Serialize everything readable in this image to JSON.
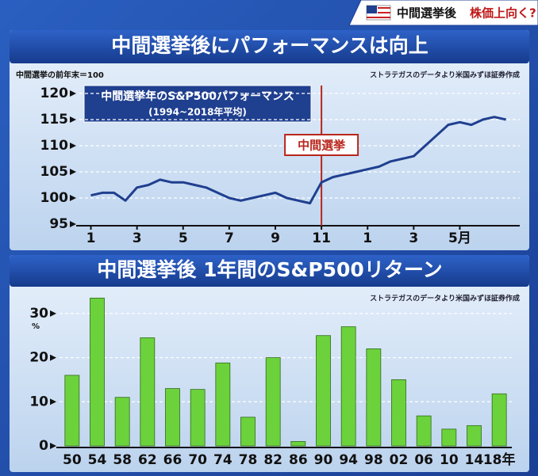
{
  "header": {
    "title": "中間選挙後",
    "subtitle": "株価上向く?"
  },
  "chart_data": [
    {
      "type": "line",
      "title": "中間選挙後にパフォーマンスは向上",
      "y_label": "中間選挙の前年末＝100",
      "source": "ストラテガスのデータより米国みずほ証券作成",
      "legend_box": {
        "title": "中間選挙年のS&P500パフォーマンス",
        "subtitle": "(1994~2018年平均)"
      },
      "annotation": {
        "label": "中間選挙",
        "x": 11
      },
      "x": [
        1,
        1.5,
        2,
        2.5,
        3,
        3.5,
        4,
        4.5,
        5,
        5.5,
        6,
        6.5,
        7,
        7.5,
        8,
        8.5,
        9,
        9.5,
        10,
        10.5,
        11,
        11.5,
        12,
        12.5,
        13,
        13.5,
        14,
        14.5,
        15,
        15.5,
        16,
        16.5,
        17,
        17.5,
        18,
        18.5,
        19
      ],
      "values": [
        100.5,
        101,
        101,
        99.5,
        102,
        102.5,
        103.5,
        103,
        103,
        102.5,
        102,
        101,
        100,
        99.5,
        100,
        100.5,
        101,
        100,
        99.5,
        99,
        103,
        104,
        104.5,
        105,
        105.5,
        106,
        107,
        107.5,
        108,
        110,
        112,
        114,
        114.5,
        114,
        115,
        115.5,
        115
      ],
      "color": "#1f3f8f",
      "xlim": [
        0.5,
        19.6
      ],
      "ylim": [
        95,
        120
      ],
      "xticks": [
        1,
        3,
        5,
        7,
        9,
        11,
        {
          "value": 13,
          "label": "1"
        },
        {
          "value": 15,
          "label": "3"
        },
        {
          "value": 17,
          "label": "5月"
        }
      ],
      "yticks": [
        95,
        100,
        105,
        110,
        115,
        120
      ],
      "grid": true
    },
    {
      "type": "bar",
      "title": "中間選挙後 1年間のS&P500リターン",
      "y_label": "%",
      "source": "ストラテガスのデータより米国みずほ証券作成",
      "categories": [
        "50",
        "54",
        "58",
        "62",
        "66",
        "70",
        "74",
        "78",
        "82",
        "86",
        "90",
        "94",
        "98",
        "02",
        "06",
        "10",
        "14",
        "18年"
      ],
      "values": [
        16,
        33.5,
        11,
        24.5,
        13,
        12.8,
        18.8,
        6.5,
        20,
        1,
        25,
        27,
        22,
        15,
        6.8,
        3.8,
        4.6,
        11.8
      ],
      "color": "#6cd23c",
      "ylim": [
        0,
        35
      ],
      "yticks": [
        0,
        10,
        20,
        30
      ],
      "grid": true
    }
  ]
}
